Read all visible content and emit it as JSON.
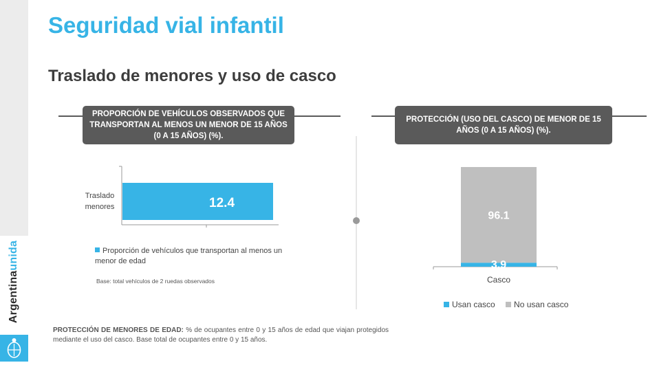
{
  "brand": {
    "text_main": "Argentina",
    "text_accent": "unida"
  },
  "header": {
    "title": "Seguridad vial infantil",
    "subtitle": "Traslado de menores y uso de casco"
  },
  "left_panel": {
    "box_title": "PROPORCIÓN DE VEHÍCULOS OBSERVADOS QUE TRANSPORTAN AL MENOS UN MENOR DE 15 AÑOS (0 A 15 AÑOS) (%).",
    "category_line1": "Traslado",
    "category_line2": "menores",
    "legend": "Proporción de vehículos que transportan al menos un menor de edad",
    "base_note": "Base: total vehículos de 2 ruedas observados"
  },
  "right_panel": {
    "box_title": "PROTECCIÓN (USO DEL CASCO) DE MENOR DE  15 AÑOS (0 A 15 AÑOS) (%).",
    "legend_usan": "Usan casco",
    "legend_no_usan": "No usan casco"
  },
  "footnote": {
    "label": "PROTECCIÓN DE MENORES DE EDAD:",
    "text": " % de ocupantes entre 0 y 15 años de edad que viajan protegidos mediante el uso del casco. Base total de ocupantes entre 0 y 15 años."
  },
  "colors": {
    "accent": "#37b4e6",
    "gray_bar": "#bfbfbf",
    "box_bg": "#5a5a5a"
  },
  "chart_data": [
    {
      "type": "bar",
      "orientation": "horizontal",
      "categories": [
        "Traslado menores"
      ],
      "series": [
        {
          "name": "Proporción de vehículos que transportan al menos un menor de edad",
          "values": [
            12.4
          ]
        }
      ],
      "data_labels": [
        "12.4"
      ],
      "title": "PROPORCIÓN DE VEHÍCULOS OBSERVADOS QUE TRANSPORTAN AL MENOS UN MENOR DE 15 AÑOS (0 A 15 AÑOS) (%).",
      "xlabel": "",
      "ylabel": "",
      "legend": "bottom",
      "grid": false
    },
    {
      "type": "bar",
      "stacked": true,
      "categories": [
        "Casco"
      ],
      "series": [
        {
          "name": "Usan casco",
          "values": [
            3.9
          ]
        },
        {
          "name": "No usan casco",
          "values": [
            96.1
          ]
        }
      ],
      "data_labels": [
        "3.9",
        "96.1"
      ],
      "title": "PROTECCIÓN (USO DEL CASCO) DE MENOR DE  15 AÑOS (0 A 15 AÑOS) (%).",
      "xlabel": "",
      "ylabel": "",
      "ylim": [
        0,
        100
      ],
      "legend": "bottom",
      "grid": false
    }
  ]
}
